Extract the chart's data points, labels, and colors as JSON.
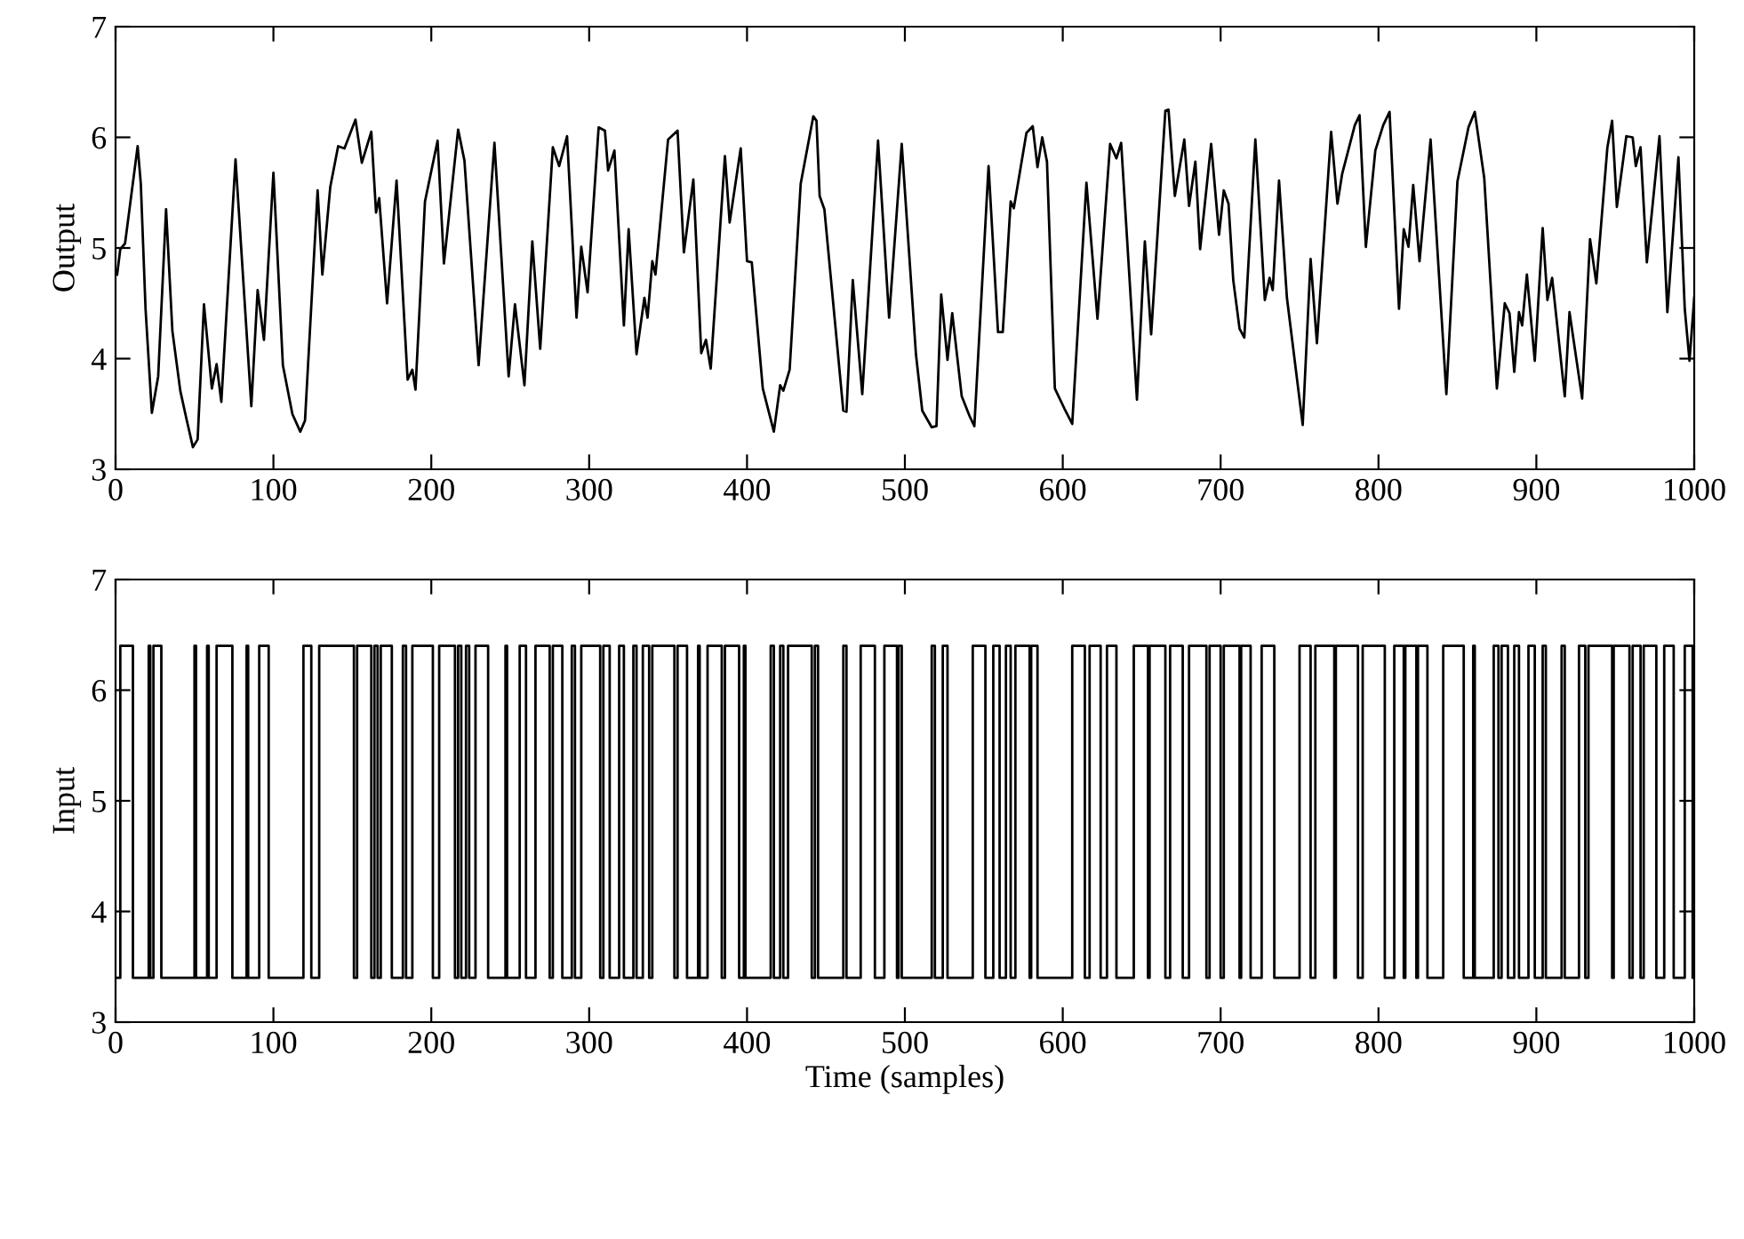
{
  "chart_data": [
    {
      "type": "line",
      "ylabel": "Output",
      "xlim": [
        0,
        1000
      ],
      "xticks": [
        0,
        100,
        200,
        300,
        400,
        500,
        600,
        700,
        800,
        900,
        1000
      ],
      "ylim": [
        3,
        7
      ],
      "yticks": [
        3,
        4,
        5,
        6,
        7
      ],
      "grid": false,
      "series": [
        {
          "color": "#000000",
          "x": [
            1,
            3,
            6,
            14,
            16,
            19,
            23,
            27,
            32,
            36,
            41,
            45,
            49,
            52,
            56,
            61,
            64,
            67,
            76,
            86,
            90,
            94,
            100,
            106,
            112,
            117,
            120,
            128,
            131,
            136,
            141,
            145,
            152,
            156,
            162,
            165,
            167,
            172,
            178,
            185,
            188,
            190,
            196,
            204,
            208,
            217,
            221,
            230,
            240,
            249,
            253,
            259,
            264,
            269,
            277,
            281,
            286,
            292,
            295,
            299,
            306,
            310,
            312,
            316,
            322,
            325,
            330,
            335,
            337,
            340,
            342,
            350,
            356,
            360,
            366,
            371,
            374,
            377,
            386,
            389,
            396,
            400,
            403,
            410,
            417,
            421,
            423,
            427,
            434,
            442,
            444,
            446,
            449,
            461,
            463,
            467,
            473,
            483,
            490,
            498,
            507,
            511,
            517,
            520,
            523,
            527,
            530,
            536,
            541,
            544,
            553,
            559,
            562,
            567,
            569,
            577,
            581,
            584,
            587,
            590,
            595,
            601,
            606,
            615,
            622,
            630,
            634,
            637,
            647,
            652,
            656,
            665,
            667,
            671,
            677,
            680,
            684,
            687,
            694,
            699,
            702,
            705,
            708,
            712,
            715,
            722,
            728,
            731,
            733,
            737,
            742,
            752,
            757,
            761,
            770,
            774,
            777,
            785,
            788,
            792,
            798,
            803,
            807,
            813,
            816,
            819,
            822,
            826,
            833,
            843,
            850,
            857,
            861,
            867,
            875,
            880,
            883,
            886,
            889,
            891,
            894,
            899,
            904,
            907,
            910,
            918,
            921,
            929,
            934,
            938,
            945,
            948,
            951,
            957,
            961,
            963,
            966,
            970,
            978,
            983,
            990,
            994,
            997,
            1000
          ],
          "values": [
            4.76,
            4.99,
            5.04,
            5.92,
            5.58,
            4.45,
            3.51,
            3.84,
            5.35,
            4.25,
            3.71,
            3.45,
            3.2,
            3.27,
            4.49,
            3.73,
            3.95,
            3.61,
            5.8,
            3.57,
            4.62,
            4.17,
            5.68,
            3.94,
            3.5,
            3.34,
            3.44,
            5.52,
            4.76,
            5.55,
            5.92,
            5.9,
            6.16,
            5.77,
            6.05,
            5.32,
            5.45,
            4.5,
            5.61,
            3.81,
            3.9,
            3.72,
            5.42,
            5.97,
            4.86,
            6.07,
            5.79,
            3.94,
            5.95,
            3.84,
            4.49,
            3.76,
            5.06,
            4.09,
            5.91,
            5.74,
            6.01,
            4.37,
            5.01,
            4.6,
            6.09,
            6.06,
            5.7,
            5.88,
            4.3,
            5.17,
            4.04,
            4.55,
            4.37,
            4.88,
            4.76,
            5.98,
            6.06,
            4.96,
            5.62,
            4.05,
            4.17,
            3.91,
            5.83,
            5.23,
            5.9,
            4.88,
            4.87,
            3.73,
            3.34,
            3.76,
            3.71,
            3.9,
            5.58,
            6.19,
            6.15,
            5.47,
            5.35,
            3.53,
            3.52,
            4.71,
            3.68,
            5.97,
            4.37,
            5.94,
            4.04,
            3.53,
            3.38,
            3.39,
            4.58,
            3.99,
            4.41,
            3.66,
            3.48,
            3.39,
            5.74,
            4.24,
            4.24,
            5.42,
            5.36,
            6.04,
            6.1,
            5.73,
            6.0,
            5.78,
            3.73,
            3.55,
            3.41,
            5.59,
            4.36,
            5.94,
            5.81,
            5.95,
            3.63,
            5.06,
            4.22,
            6.24,
            6.25,
            5.47,
            5.98,
            5.38,
            5.78,
            4.99,
            5.94,
            5.12,
            5.52,
            5.4,
            4.71,
            4.27,
            4.19,
            5.98,
            4.53,
            4.73,
            4.62,
            5.61,
            4.55,
            3.4,
            4.9,
            4.14,
            6.05,
            5.4,
            5.67,
            6.11,
            6.2,
            5.01,
            5.88,
            6.11,
            6.23,
            4.45,
            5.17,
            5.01,
            5.57,
            4.88,
            5.98,
            3.68,
            5.6,
            6.09,
            6.23,
            5.63,
            3.73,
            4.5,
            4.41,
            3.88,
            4.42,
            4.3,
            4.76,
            3.98,
            5.18,
            4.53,
            4.73,
            3.66,
            4.42,
            3.64,
            5.08,
            4.68,
            5.91,
            6.15,
            5.37,
            6.01,
            6.0,
            5.74,
            5.91,
            4.87,
            6.01,
            4.42,
            5.82,
            4.45,
            3.98,
            4.55
          ]
        }
      ]
    },
    {
      "type": "step",
      "ylabel": "Input",
      "xlabel": "Time (samples)",
      "xlim": [
        0,
        1000
      ],
      "xticks": [
        0,
        100,
        200,
        300,
        400,
        500,
        600,
        700,
        800,
        900,
        1000
      ],
      "ylim": [
        3,
        7
      ],
      "yticks": [
        3,
        4,
        5,
        6,
        7
      ],
      "grid": false,
      "series": [
        {
          "color": "#000000",
          "x": [
            0,
            3,
            11,
            21,
            22,
            24,
            29,
            50,
            51,
            58,
            59,
            64,
            74,
            83,
            84,
            91,
            97,
            119,
            124,
            129,
            151,
            153,
            162,
            164,
            166,
            168,
            175,
            182,
            184,
            188,
            201,
            205,
            215,
            217,
            219,
            222,
            224,
            228,
            236,
            247,
            248,
            256,
            260,
            266,
            275,
            277,
            283,
            289,
            291,
            295,
            307,
            309,
            313,
            319,
            322,
            328,
            330,
            334,
            338,
            340,
            354,
            356,
            362,
            369,
            370,
            375,
            384,
            386,
            395,
            398,
            399,
            415,
            417,
            421,
            423,
            426,
            441,
            443,
            445,
            461,
            463,
            472,
            481,
            487,
            495,
            496,
            498,
            517,
            519,
            524,
            527,
            543,
            551,
            556,
            560,
            564,
            567,
            570,
            579,
            580,
            584,
            606,
            614,
            617,
            624,
            628,
            634,
            645,
            654,
            655,
            665,
            668,
            676,
            680,
            691,
            693,
            700,
            702,
            712,
            713,
            719,
            726,
            734,
            750,
            757,
            760,
            772,
            773,
            787,
            790,
            804,
            810,
            816,
            817,
            824,
            825,
            831,
            841,
            854,
            860,
            861,
            873,
            876,
            878,
            882,
            886,
            889,
            895,
            899,
            904,
            906,
            916,
            918,
            927,
            931,
            933,
            948,
            949,
            959,
            961,
            966,
            968,
            976,
            981,
            987,
            994,
            999,
            1000
          ],
          "values": [
            3.4,
            6.4,
            3.4,
            6.4,
            3.4,
            6.4,
            3.4,
            6.4,
            3.4,
            6.4,
            3.4,
            6.4,
            3.4,
            6.4,
            3.4,
            6.4,
            3.4,
            6.4,
            3.4,
            6.4,
            3.4,
            6.4,
            3.4,
            6.4,
            3.4,
            6.4,
            3.4,
            6.4,
            3.4,
            6.4,
            3.4,
            6.4,
            3.4,
            6.4,
            3.4,
            6.4,
            3.4,
            6.4,
            3.4,
            6.4,
            3.4,
            6.4,
            3.4,
            6.4,
            3.4,
            6.4,
            3.4,
            6.4,
            3.4,
            6.4,
            3.4,
            6.4,
            3.4,
            6.4,
            3.4,
            6.4,
            3.4,
            6.4,
            3.4,
            6.4,
            3.4,
            6.4,
            3.4,
            6.4,
            3.4,
            6.4,
            3.4,
            6.4,
            3.4,
            6.4,
            3.4,
            6.4,
            3.4,
            6.4,
            3.4,
            6.4,
            3.4,
            6.4,
            3.4,
            6.4,
            3.4,
            6.4,
            3.4,
            6.4,
            3.4,
            6.4,
            3.4,
            6.4,
            3.4,
            6.4,
            3.4,
            6.4,
            3.4,
            6.4,
            3.4,
            6.4,
            3.4,
            6.4,
            3.4,
            6.4,
            3.4,
            6.4,
            3.4,
            6.4,
            3.4,
            6.4,
            3.4,
            6.4,
            3.4,
            6.4,
            3.4,
            6.4,
            3.4,
            6.4,
            3.4,
            6.4,
            3.4,
            6.4,
            3.4,
            6.4,
            3.4,
            6.4,
            3.4,
            6.4,
            3.4,
            6.4,
            3.4,
            6.4,
            3.4,
            6.4,
            3.4,
            6.4,
            3.4,
            6.4,
            3.4,
            6.4,
            3.4,
            6.4,
            3.4,
            6.4,
            3.4,
            6.4,
            3.4,
            6.4,
            3.4,
            6.4,
            3.4,
            6.4,
            3.4,
            6.4,
            3.4,
            6.4,
            3.4,
            6.4,
            3.4,
            6.4,
            3.4,
            6.4,
            3.4,
            6.4,
            3.4,
            6.4,
            3.4,
            6.4,
            3.4,
            6.4,
            3.4,
            3.4
          ]
        }
      ]
    }
  ]
}
